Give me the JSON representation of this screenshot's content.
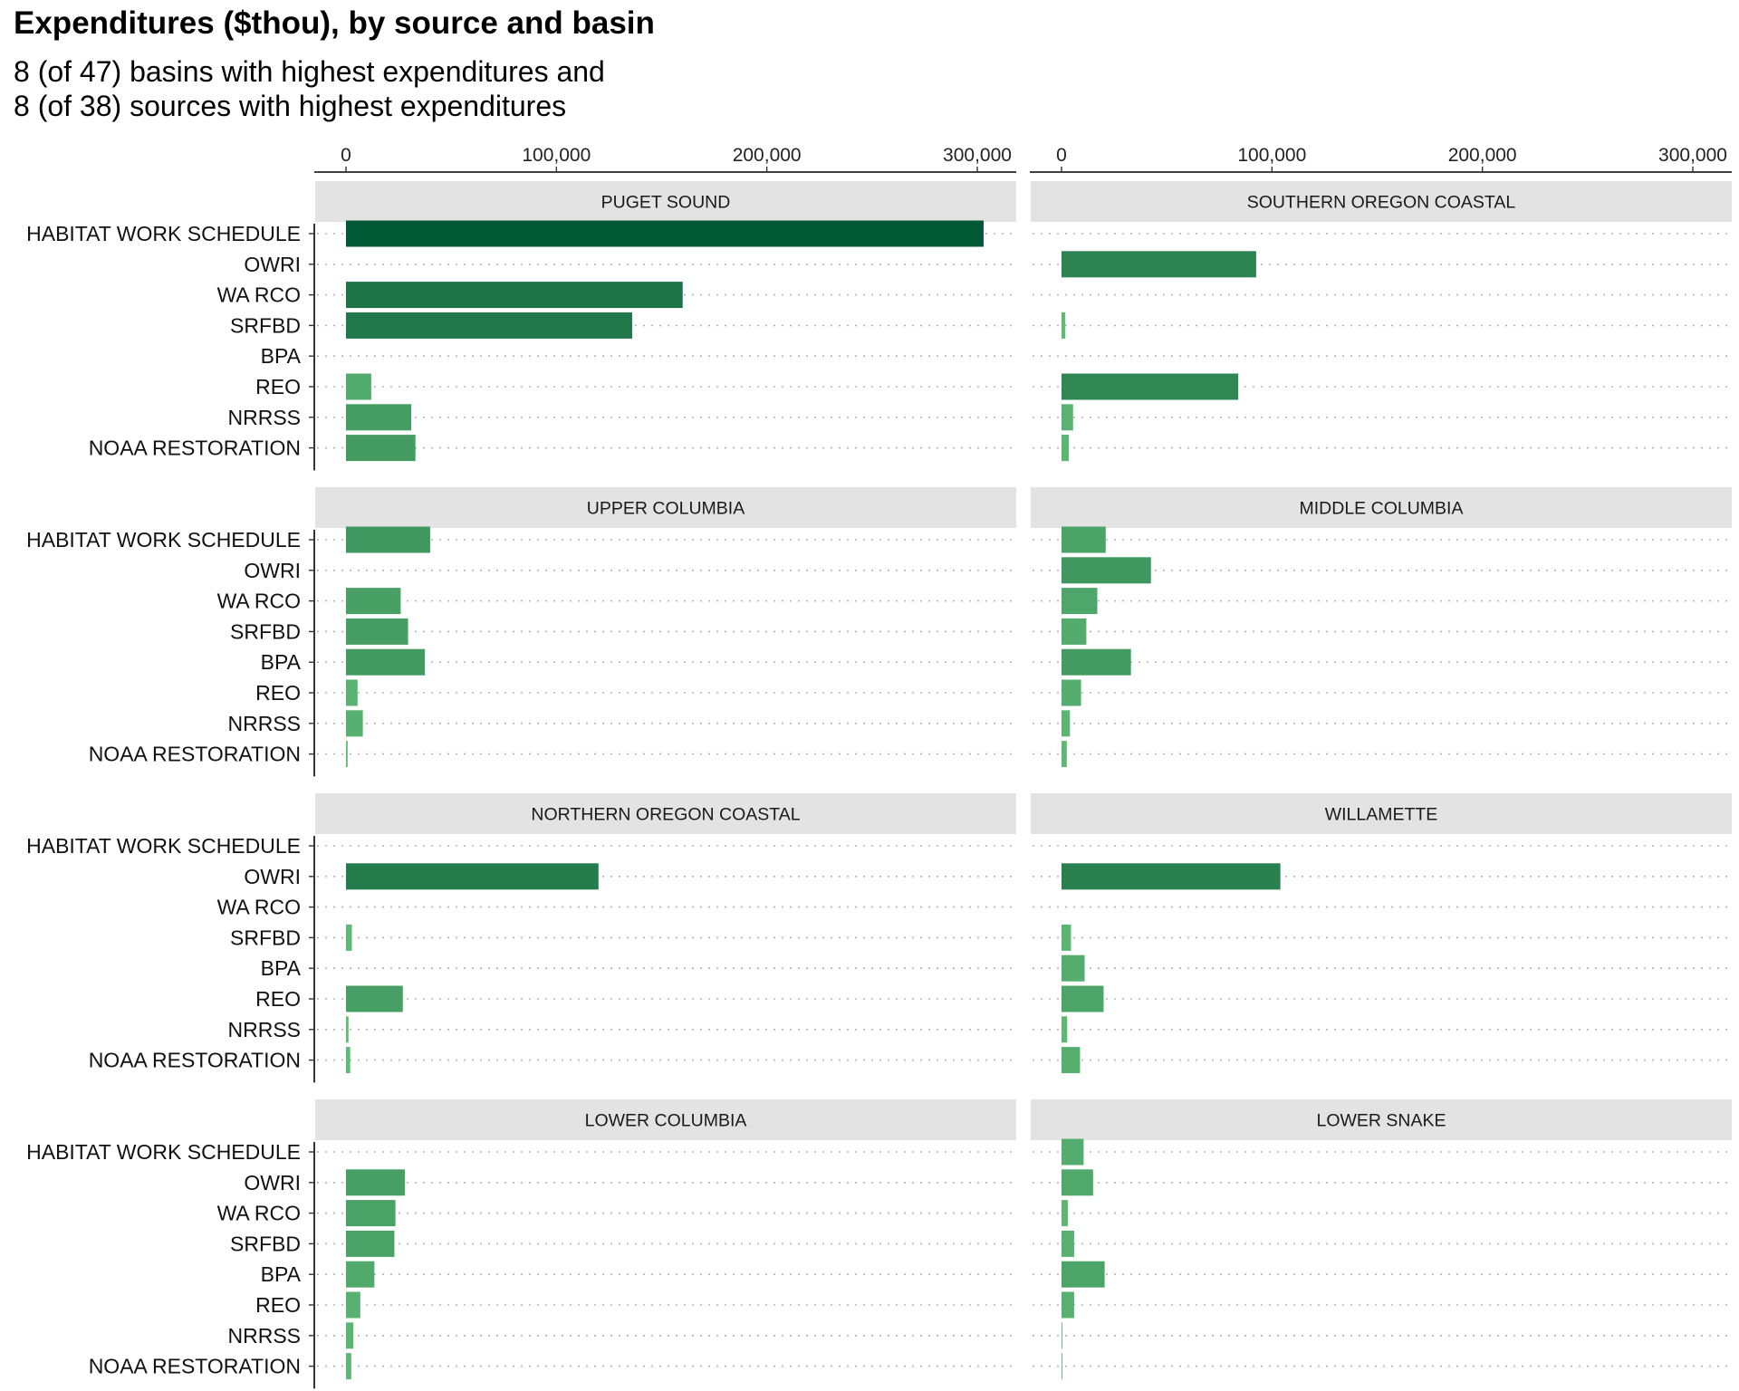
{
  "chart_data": {
    "type": "bar",
    "orientation": "horizontal",
    "title": "Expenditures ($thou), by source and basin",
    "subtitle_lines": [
      "8 (of 47) basins with highest expenditures and",
      "8 (of 38) sources with highest expenditures"
    ],
    "categories": [
      "HABITAT WORK SCHEDULE",
      "OWRI",
      "WA RCO",
      "SRFBD",
      "BPA",
      "REO",
      "NRRSS",
      "NOAA RESTORATION"
    ],
    "xlim": [
      0,
      300000
    ],
    "x_ticks": [
      0,
      100000,
      200000,
      300000
    ],
    "x_tick_labels": [
      "0",
      "100,000",
      "200,000",
      "300,000"
    ],
    "x_axis_position": "top",
    "grid": "dotted horizontal",
    "fill_scale": "green, darker for larger values",
    "panels": [
      {
        "basin": "PUGET SOUND",
        "values": [
          303000,
          0,
          160000,
          136000,
          0,
          12000,
          31000,
          33000
        ]
      },
      {
        "basin": "SOUTHERN OREGON COASTAL",
        "values": [
          0,
          92500,
          0,
          1800,
          0,
          84000,
          5500,
          3500
        ]
      },
      {
        "basin": "UPPER COLUMBIA",
        "values": [
          40000,
          0,
          26000,
          29500,
          37500,
          5500,
          8000,
          800
        ]
      },
      {
        "basin": "MIDDLE COLUMBIA",
        "values": [
          21000,
          42500,
          17000,
          11800,
          33000,
          9300,
          4000,
          2500
        ]
      },
      {
        "basin": "NORTHERN OREGON COASTAL",
        "values": [
          0,
          120000,
          0,
          2800,
          0,
          27000,
          1200,
          2000
        ]
      },
      {
        "basin": "WILLAMETTE",
        "values": [
          0,
          104000,
          0,
          4500,
          11000,
          20000,
          2700,
          8800
        ]
      },
      {
        "basin": "LOWER COLUMBIA",
        "values": [
          0,
          28000,
          23500,
          23000,
          13500,
          6800,
          3500,
          2500
        ]
      },
      {
        "basin": "LOWER SNAKE",
        "values": [
          10500,
          15000,
          3000,
          6000,
          20500,
          6000,
          400,
          400
        ]
      }
    ]
  }
}
